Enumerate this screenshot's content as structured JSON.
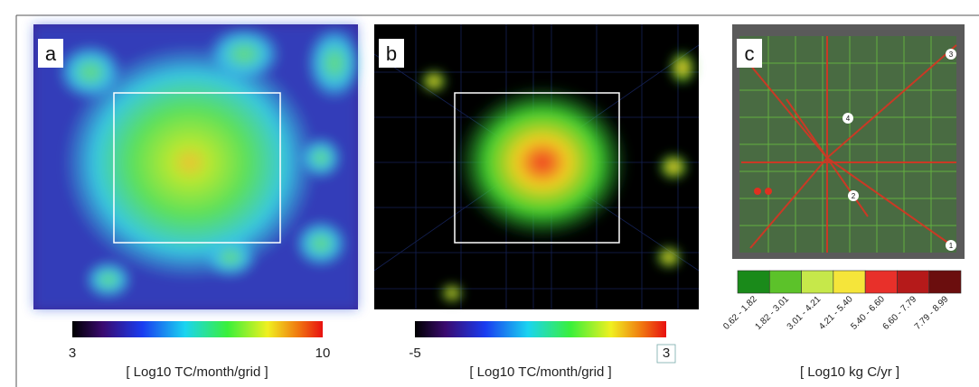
{
  "panels": [
    {
      "letter": "a",
      "colorbar": {
        "min_label": "3",
        "max_label": "10",
        "unit": "[ Log10 TC/month/grid ]"
      }
    },
    {
      "letter": "b",
      "colorbar": {
        "min_label": "-5",
        "max_label": "3",
        "unit": "[ Log10 TC/month/grid ]"
      }
    },
    {
      "letter": "c",
      "site_markers": [
        "1",
        "2",
        "3",
        "4"
      ],
      "colorbar": {
        "classes": [
          "0.62 - 1.82",
          "1.82 - 3.01",
          "3.01 - 4.21",
          "4.21 - 5.40",
          "5.40 - 6.60",
          "6.60 - 7.79",
          "7.79 - 8.99"
        ],
        "unit": "[ Log10 kg C/yr ]"
      }
    }
  ]
}
